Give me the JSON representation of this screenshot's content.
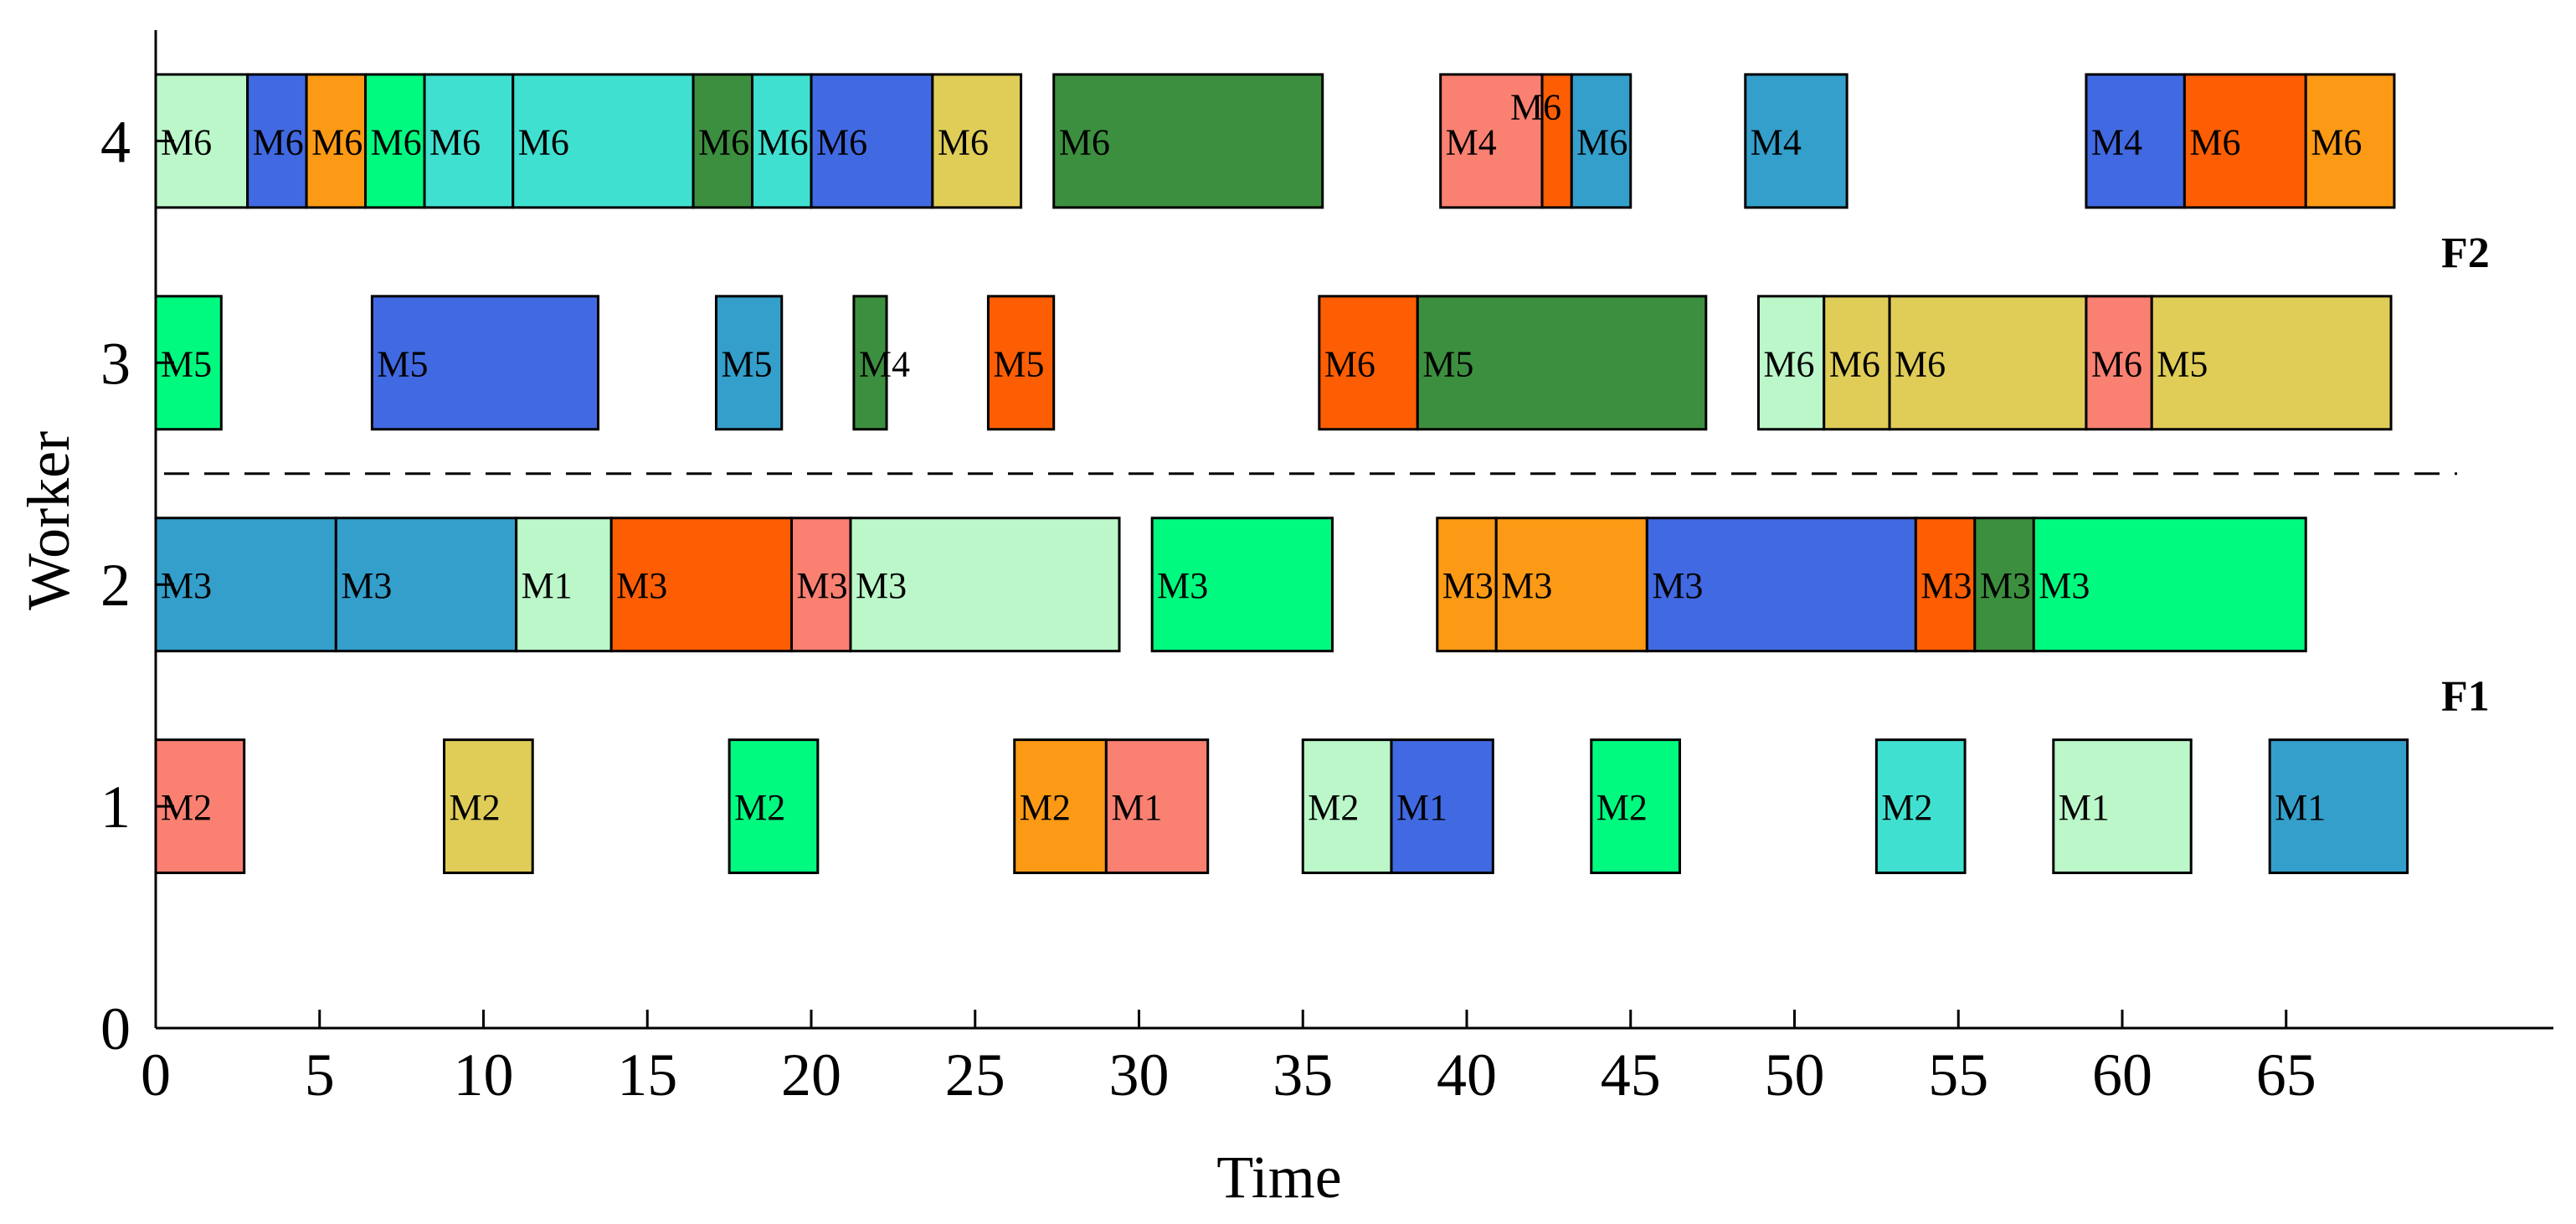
{
  "chart_data": {
    "type": "gantt",
    "xlabel": "Time",
    "ylabel": "Worker",
    "xlim": [
      0,
      73
    ],
    "ylim": [
      0,
      4.5
    ],
    "x_ticks": [
      0,
      5,
      10,
      15,
      20,
      25,
      30,
      35,
      40,
      45,
      50,
      55,
      60,
      65
    ],
    "y_ticks": [
      0,
      1,
      2,
      3,
      4
    ],
    "divider_y": 2.5,
    "bar_height": 0.6,
    "colors": {
      "salmon": "#FA8072",
      "gold": "#E0CD58",
      "springgreen": "#00FA7F",
      "orange": "#FC9A15",
      "mint": "#BBF7C9",
      "royalblue": "#4169E1",
      "steelblue": "#349FCB",
      "turquoise": "#40E0D0",
      "darkorange": "#FD5E03",
      "forestgreen": "#3C8F3F"
    },
    "factory_labels": [
      {
        "text": "F2",
        "y": 3.5
      },
      {
        "text": "F1",
        "y": 1.5
      }
    ],
    "tasks": [
      {
        "worker": 1,
        "start": 0.0,
        "end": 2.7,
        "label": "M2",
        "color": "salmon"
      },
      {
        "worker": 1,
        "start": 8.8,
        "end": 11.5,
        "label": "M2",
        "color": "gold"
      },
      {
        "worker": 1,
        "start": 17.5,
        "end": 20.2,
        "label": "M2",
        "color": "springgreen"
      },
      {
        "worker": 1,
        "start": 26.2,
        "end": 29.0,
        "label": "M2",
        "color": "orange"
      },
      {
        "worker": 1,
        "start": 29.0,
        "end": 32.1,
        "label": "M1",
        "color": "salmon"
      },
      {
        "worker": 1,
        "start": 35.0,
        "end": 37.7,
        "label": "M2",
        "color": "mint"
      },
      {
        "worker": 1,
        "start": 37.7,
        "end": 40.8,
        "label": "M1",
        "color": "royalblue"
      },
      {
        "worker": 1,
        "start": 43.8,
        "end": 46.5,
        "label": "M2",
        "color": "springgreen"
      },
      {
        "worker": 1,
        "start": 52.5,
        "end": 55.2,
        "label": "M2",
        "color": "turquoise"
      },
      {
        "worker": 1,
        "start": 57.9,
        "end": 62.1,
        "label": "M1",
        "color": "mint"
      },
      {
        "worker": 1,
        "start": 64.5,
        "end": 68.7,
        "label": "M1",
        "color": "steelblue"
      },
      {
        "worker": 2,
        "start": 0.0,
        "end": 5.5,
        "label": "M3",
        "color": "steelblue"
      },
      {
        "worker": 2,
        "start": 5.5,
        "end": 11.0,
        "label": "M3",
        "color": "steelblue"
      },
      {
        "worker": 2,
        "start": 11.0,
        "end": 13.9,
        "label": "M1",
        "color": "mint"
      },
      {
        "worker": 2,
        "start": 13.9,
        "end": 19.4,
        "label": "M3",
        "color": "darkorange"
      },
      {
        "worker": 2,
        "start": 19.4,
        "end": 21.2,
        "label": "M3",
        "color": "salmon"
      },
      {
        "worker": 2,
        "start": 21.2,
        "end": 29.4,
        "label": "M3",
        "color": "mint"
      },
      {
        "worker": 2,
        "start": 30.4,
        "end": 35.9,
        "label": "M3",
        "color": "springgreen"
      },
      {
        "worker": 2,
        "start": 39.1,
        "end": 40.9,
        "label": "M3",
        "color": "orange"
      },
      {
        "worker": 2,
        "start": 40.9,
        "end": 45.5,
        "label": "M3",
        "color": "orange"
      },
      {
        "worker": 2,
        "start": 45.5,
        "end": 53.7,
        "label": "M3",
        "color": "royalblue"
      },
      {
        "worker": 2,
        "start": 53.7,
        "end": 55.5,
        "label": "M3",
        "color": "darkorange"
      },
      {
        "worker": 2,
        "start": 55.5,
        "end": 57.3,
        "label": "M3",
        "color": "forestgreen"
      },
      {
        "worker": 2,
        "start": 57.3,
        "end": 65.6,
        "label": "M3",
        "color": "springgreen"
      },
      {
        "worker": 3,
        "start": 0.0,
        "end": 2.0,
        "label": "M5",
        "color": "springgreen"
      },
      {
        "worker": 3,
        "start": 6.6,
        "end": 13.5,
        "label": "M5",
        "color": "royalblue"
      },
      {
        "worker": 3,
        "start": 17.1,
        "end": 19.1,
        "label": "M5",
        "color": "steelblue"
      },
      {
        "worker": 3,
        "start": 21.3,
        "end": 22.3,
        "label": "M4",
        "color": "forestgreen"
      },
      {
        "worker": 3,
        "start": 25.4,
        "end": 27.4,
        "label": "M5",
        "color": "darkorange"
      },
      {
        "worker": 3,
        "start": 35.5,
        "end": 38.5,
        "label": "M6",
        "color": "darkorange"
      },
      {
        "worker": 3,
        "start": 38.5,
        "end": 47.3,
        "label": "M5",
        "color": "forestgreen"
      },
      {
        "worker": 3,
        "start": 48.9,
        "end": 50.9,
        "label": "M6",
        "color": "mint"
      },
      {
        "worker": 3,
        "start": 50.9,
        "end": 52.9,
        "label": "M6",
        "color": "gold"
      },
      {
        "worker": 3,
        "start": 52.9,
        "end": 58.9,
        "label": "M6",
        "color": "gold"
      },
      {
        "worker": 3,
        "start": 58.9,
        "end": 60.9,
        "label": "M6",
        "color": "salmon"
      },
      {
        "worker": 3,
        "start": 60.9,
        "end": 68.2,
        "label": "M5",
        "color": "gold"
      },
      {
        "worker": 4,
        "start": 0.0,
        "end": 2.8,
        "label": "M6",
        "color": "mint"
      },
      {
        "worker": 4,
        "start": 2.8,
        "end": 4.6,
        "label": "M6",
        "color": "royalblue"
      },
      {
        "worker": 4,
        "start": 4.6,
        "end": 6.4,
        "label": "M6",
        "color": "orange"
      },
      {
        "worker": 4,
        "start": 6.4,
        "end": 8.2,
        "label": "M6",
        "color": "springgreen"
      },
      {
        "worker": 4,
        "start": 8.2,
        "end": 10.9,
        "label": "M6",
        "color": "turquoise"
      },
      {
        "worker": 4,
        "start": 10.9,
        "end": 16.4,
        "label": "M6",
        "color": "turquoise"
      },
      {
        "worker": 4,
        "start": 16.4,
        "end": 18.2,
        "label": "M6",
        "color": "forestgreen"
      },
      {
        "worker": 4,
        "start": 18.2,
        "end": 20.0,
        "label": "M6",
        "color": "turquoise"
      },
      {
        "worker": 4,
        "start": 20.0,
        "end": 23.7,
        "label": "M6",
        "color": "royalblue"
      },
      {
        "worker": 4,
        "start": 23.7,
        "end": 26.4,
        "label": "M6",
        "color": "gold"
      },
      {
        "worker": 4,
        "start": 27.4,
        "end": 35.6,
        "label": "M6",
        "color": "forestgreen"
      },
      {
        "worker": 4,
        "start": 39.2,
        "end": 42.3,
        "label": "M4",
        "color": "salmon"
      },
      {
        "worker": 4,
        "start": 42.3,
        "end": 43.2,
        "label": "M6",
        "color": "darkorange",
        "label_above": true
      },
      {
        "worker": 4,
        "start": 43.2,
        "end": 45.0,
        "label": "M6",
        "color": "steelblue"
      },
      {
        "worker": 4,
        "start": 48.5,
        "end": 51.6,
        "label": "M4",
        "color": "steelblue"
      },
      {
        "worker": 4,
        "start": 58.9,
        "end": 61.9,
        "label": "M4",
        "color": "royalblue"
      },
      {
        "worker": 4,
        "start": 61.9,
        "end": 65.6,
        "label": "M6",
        "color": "darkorange"
      },
      {
        "worker": 4,
        "start": 65.6,
        "end": 68.3,
        "label": "M6",
        "color": "orange"
      }
    ]
  }
}
